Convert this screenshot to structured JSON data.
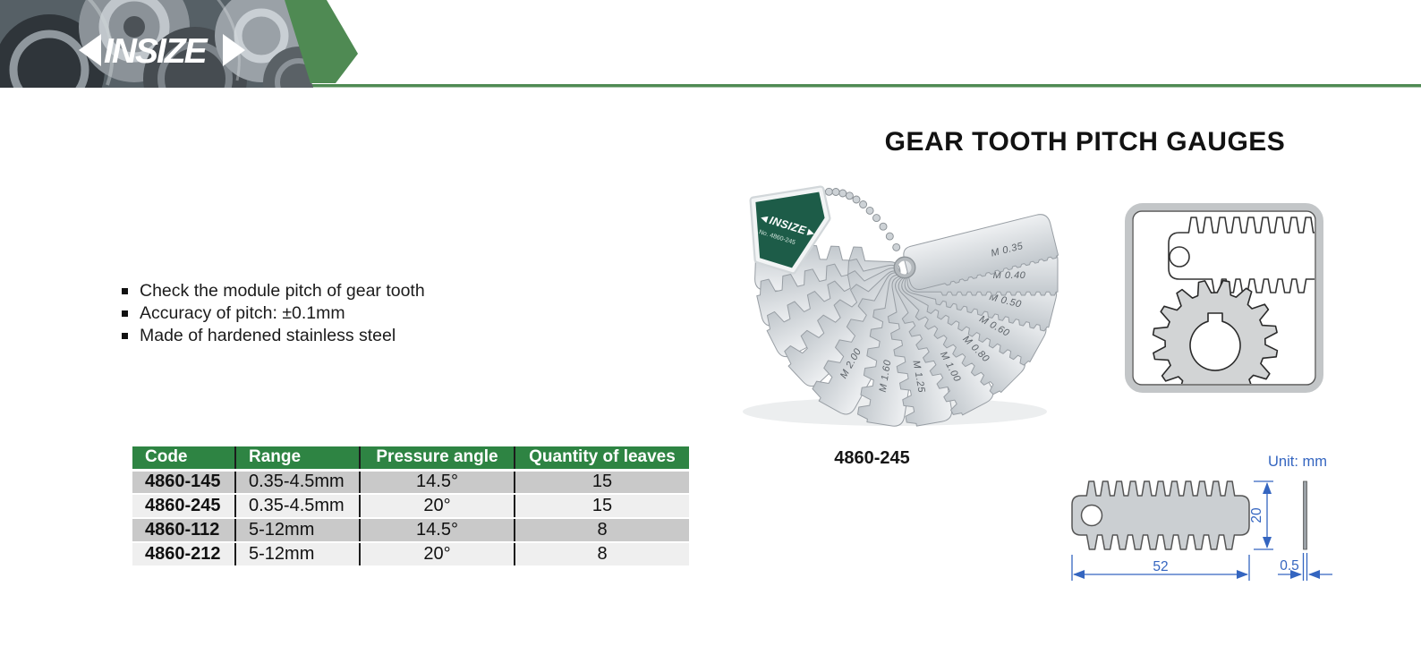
{
  "header": {
    "logo_text": "INSIZE"
  },
  "page": {
    "title": "GEAR TOOTH PITCH GAUGES"
  },
  "features": {
    "items": [
      "Check the module pitch of gear tooth",
      "Accuracy of pitch: ±0.1mm",
      "Made of hardened stainless steel"
    ]
  },
  "spec_table": {
    "headers": [
      "Code",
      "Range",
      "Pressure angle",
      "Quantity of leaves"
    ],
    "rows": [
      {
        "code": "4860-145",
        "range": "0.35-4.5mm",
        "pressure_angle": "14.5°",
        "quantity": "15"
      },
      {
        "code": "4860-245",
        "range": "0.35-4.5mm",
        "pressure_angle": "20°",
        "quantity": "15"
      },
      {
        "code": "4860-112",
        "range": "5-12mm",
        "pressure_angle": "14.5°",
        "quantity": "8"
      },
      {
        "code": "4860-212",
        "range": "5-12mm",
        "pressure_angle": "20°",
        "quantity": "8"
      }
    ]
  },
  "product_photo": {
    "caption": "4860-245",
    "tag_logo": "◄INSIZE►",
    "tag_no": "No. 4860-245",
    "leaf_labels": [
      "M 0.35",
      "M 0.40",
      "M 0.50",
      "M 0.60",
      "M 0.80",
      "M 1.00",
      "M 1.25",
      "M 1.60",
      "M 2.00"
    ]
  },
  "dimension_drawing": {
    "unit_label": "Unit: mm",
    "width": "52",
    "height": "20",
    "thickness": "0.5"
  },
  "colors": {
    "accent_green": "#4f8a53",
    "table_header_green": "#2e8443",
    "tag_green": "#1d5c48",
    "dimension_blue": "#3465c0"
  }
}
